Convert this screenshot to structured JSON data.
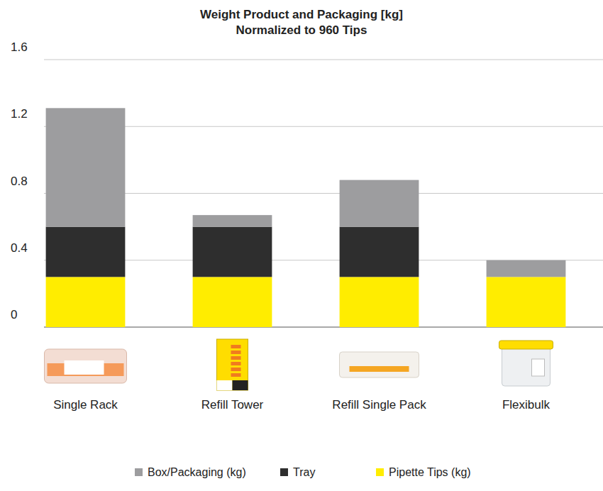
{
  "chart_data": {
    "type": "bar",
    "stacked": true,
    "title": "Weight Product and Packaging [kg]",
    "subtitle": "Normalized to 960 Tips",
    "categories": [
      "Single Rack",
      "Refill Tower",
      "Refill Single Pack",
      "Flexibulk"
    ],
    "series": [
      {
        "name": "Pipette Tips (kg)",
        "color": "#ffed00",
        "values": [
          0.3,
          0.3,
          0.3,
          0.3
        ]
      },
      {
        "name": "Tray",
        "color": "#2e2e2e",
        "values": [
          0.3,
          0.3,
          0.3,
          0
        ]
      },
      {
        "name": "Box/Packaging (kg)",
        "color": "#9d9d9f",
        "values": [
          0.71,
          0.07,
          0.28,
          0.1
        ]
      }
    ],
    "ylim": [
      0,
      1.6
    ],
    "yticks": [
      0,
      0.4,
      0.8,
      1.2,
      1.6
    ],
    "grid": true,
    "legend": "bottom"
  }
}
